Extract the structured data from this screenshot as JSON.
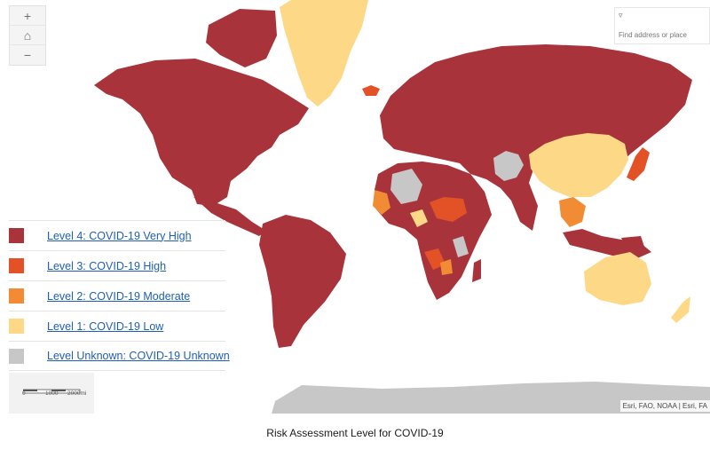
{
  "colors": {
    "very_high": "#a8333a",
    "high": "#e35226",
    "moderate": "#f18b34",
    "low": "#fdd886",
    "unknown": "#c7c7c7",
    "link": "#1f5fb4"
  },
  "zoom": {
    "zoom_in_icon": "+",
    "home_icon": "⌂",
    "zoom_out_icon": "−"
  },
  "search": {
    "dropdown_icon": "▿",
    "placeholder": "Find address or place"
  },
  "legend": [
    {
      "level": "very_high",
      "label": "Level 4: COVID-19 Very High"
    },
    {
      "level": "high",
      "label": "Level 3: COVID-19 High"
    },
    {
      "level": "moderate",
      "label": "Level 2: COVID-19 Moderate"
    },
    {
      "level": "low",
      "label": "Level 1: COVID-19 Low"
    },
    {
      "level": "unknown",
      "label": "Level Unknown: COVID-19 Unknown"
    }
  ],
  "scalebar": {
    "tick_0": "0",
    "tick_1": "1000",
    "tick_2": "2000mi"
  },
  "attribution": "Esri, FAO, NOAA | Esri, FA",
  "caption": "Risk Assessment Level for COVID-19"
}
